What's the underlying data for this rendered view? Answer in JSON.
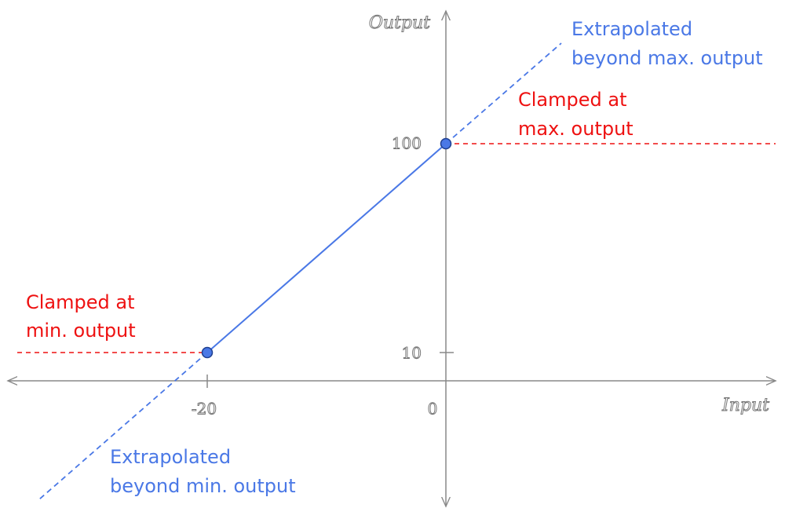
{
  "axes": {
    "x_label": "Input",
    "y_label": "Output"
  },
  "ticks": {
    "x": [
      "-20",
      "0"
    ],
    "y": [
      "100",
      "10"
    ]
  },
  "annotations": {
    "extrapolated_max": [
      "Extrapolated",
      "beyond max. output"
    ],
    "clamped_max": [
      "Clamped at",
      "max. output"
    ],
    "clamped_min": [
      "Clamped at",
      "min. output"
    ],
    "extrapolated_min": [
      "Extrapolated",
      "beyond min. output"
    ]
  }
}
